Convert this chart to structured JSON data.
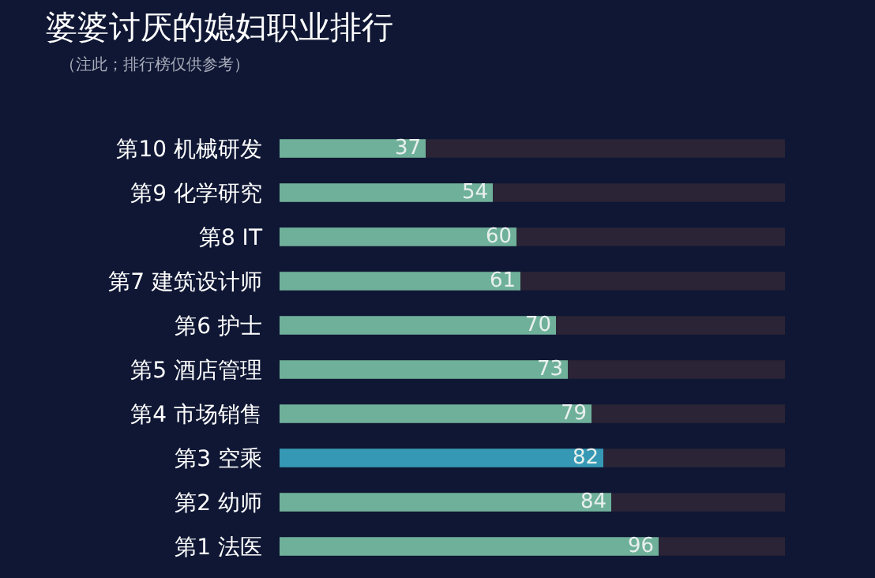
{
  "chart_data": {
    "type": "bar",
    "orientation": "horizontal",
    "title": "婆婆讨厌的媳妇职业排行",
    "subtitle": "（注此；排行榜仅供参考）",
    "categories": [
      "第10 机械研发",
      "第9 化学研究",
      "第8 IT",
      "第7 建筑设计师",
      "第6 护士",
      "第5 酒店管理",
      "第4 市场销售",
      "第3 空乘",
      "第2 幼师",
      "第1 法医"
    ],
    "values": [
      37,
      54,
      60,
      61,
      70,
      73,
      79,
      82,
      84,
      96
    ],
    "colors": [
      "#6fb09a",
      "#6fb09a",
      "#6fb09a",
      "#6fb09a",
      "#6fb09a",
      "#6fb09a",
      "#6fb09a",
      "#3598b4",
      "#6fb09a",
      "#6fb09a"
    ],
    "xlim": [
      0,
      128
    ],
    "data_labels": true,
    "tick_labels": "y",
    "grid": false,
    "legend": false
  }
}
